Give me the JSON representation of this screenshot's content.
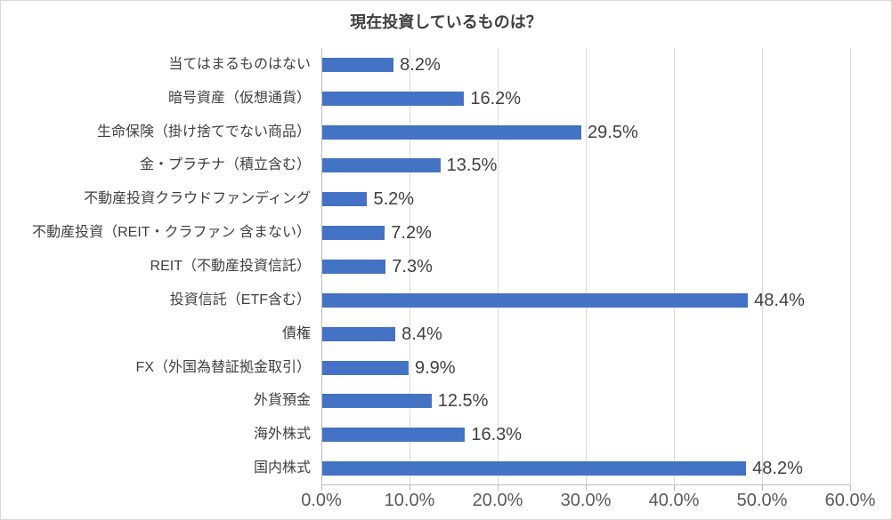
{
  "chart_data": {
    "type": "bar",
    "orientation": "horizontal",
    "title": "現在投資しているものは？",
    "categories": [
      "当てはまるものはない",
      "暗号資産（仮想通貨）",
      "生命保険（掛け捨てでない商品）",
      "金・プラチナ（積立含む）",
      "不動産投資クラウドファンディング",
      "不動産投資（REIT・クラファン 含まない）",
      "REIT（不動産投資信託）",
      "投資信託（ETF含む）",
      "債権",
      "FX（外国為替証拠金取引）",
      "外貨預金",
      "海外株式",
      "国内株式"
    ],
    "values": [
      8.2,
      16.2,
      29.5,
      13.5,
      5.2,
      7.2,
      7.3,
      48.4,
      8.4,
      9.9,
      12.5,
      16.3,
      48.2
    ],
    "value_labels": [
      "8.2%",
      "16.2%",
      "29.5%",
      "13.5%",
      "5.2%",
      "7.2%",
      "7.3%",
      "48.4%",
      "8.4%",
      "9.9%",
      "12.5%",
      "16.3%",
      "48.2%"
    ],
    "xlabel": "",
    "ylabel": "",
    "xlim": [
      0,
      60
    ],
    "x_axis": {
      "tick_labels": [
        "0.0%",
        "10.0%",
        "20.0%",
        "30.0%",
        "40.0%",
        "50.0%",
        "60.0%"
      ],
      "min": 0,
      "max": 60,
      "step": 10
    },
    "grid": true,
    "legend": "none",
    "colors": {
      "bar": "#4472C4",
      "gridline": "#D9D9D9",
      "axis_line": "#BDBDBD",
      "title_text": "#404040",
      "label_text": "#404040",
      "axis_text": "#595959",
      "background": "#FFFFFF",
      "border": "#D9D9D9"
    }
  }
}
